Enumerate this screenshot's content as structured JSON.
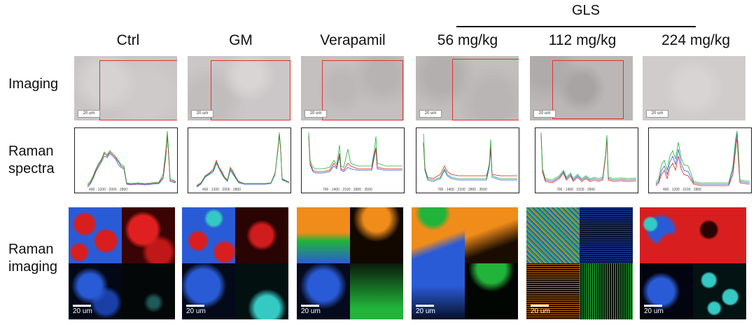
{
  "group_label": "GLS",
  "columns": [
    {
      "label": "Ctrl"
    },
    {
      "label": "GM"
    },
    {
      "label": "Verapamil"
    },
    {
      "label": "56 mg/kg"
    },
    {
      "label": "112 mg/kg"
    },
    {
      "label": "224 mg/kg"
    }
  ],
  "rows": {
    "imaging": "Imaging",
    "raman_spectra_1": "Raman",
    "raman_spectra_2": "spectra",
    "raman_imaging_1": "Raman",
    "raman_imaging_2": "imaging"
  },
  "scale_bar": "20 um",
  "micro_scale_bar": "20 um",
  "colors": {
    "red": "#d81e1e",
    "blue": "#2a5bd7",
    "green": "#22b33a",
    "cyan": "#35c9c4",
    "orange": "#f08c1a",
    "black": "#050505",
    "micrograph": "#c6c2c2"
  }
}
